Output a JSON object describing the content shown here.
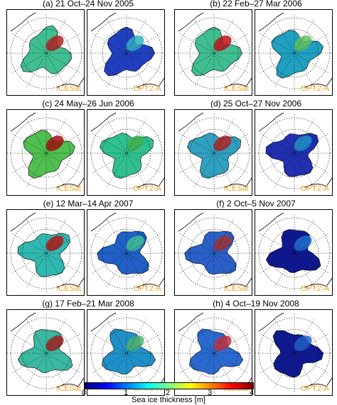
{
  "panels": [
    {
      "title": "(a) 21 Oct–24 Nov 2005",
      "left": "ICESat",
      "right": "OPT2-A"
    },
    {
      "title": "(b) 22 Feb–27 Mar 2006",
      "left": "ICESat",
      "right": "OPT2-A"
    },
    {
      "title": "(c) 24 May–26 Jun 2006",
      "left": "ICESat",
      "right": "OPT2-A"
    },
    {
      "title": "(d) 25 Oct–27 Nov 2006",
      "left": "ICESat",
      "right": "OPT2-A"
    },
    {
      "title": "(e) 12 Mar–14 Apr 2007",
      "left": "ICESat",
      "right": "OPT2-A"
    },
    {
      "title": "(f) 2 Oct–5 Nov 2007",
      "left": "ICESat",
      "right": "OPT2-A"
    },
    {
      "title": "(g) 17 Feb–21 Mar 2008",
      "left": "ICESat",
      "right": "OPT2-A"
    },
    {
      "title": "(h) 4 Oct–19 Nov 2008",
      "left": "ICESat",
      "right": "OPT2-A"
    }
  ],
  "colorbar": {
    "label": "Sea ice thickness [m]",
    "ticks": [
      "0",
      "1",
      "2",
      "3",
      "4"
    ],
    "colors": [
      "#00007f",
      "#0000ff",
      "#007fff",
      "#00ffff",
      "#7fff7f",
      "#ffff00",
      "#ff7f00",
      "#ff0000",
      "#7f0000"
    ]
  },
  "maps": {
    "icesat": [
      {
        "base": "#3fbf8f",
        "accent": "#b22222"
      },
      {
        "base": "#3fbf8f",
        "accent": "#c0101a"
      },
      {
        "base": "#4fc04f",
        "accent": "#a01010"
      },
      {
        "base": "#30a0c0",
        "accent": "#b22222"
      },
      {
        "base": "#30b8b0",
        "accent": "#b01818"
      },
      {
        "base": "#2a60c8",
        "accent": "#a03030"
      },
      {
        "base": "#3ab8a0",
        "accent": "#a02020"
      },
      {
        "base": "#2a6ad0",
        "accent": "#c03040"
      }
    ],
    "opt2a": [
      {
        "base": "#2040c0",
        "accent": "#30b0c0"
      },
      {
        "base": "#20a0c0",
        "accent": "#60c060"
      },
      {
        "base": "#30c090",
        "accent": "#40b050"
      },
      {
        "base": "#2030b0",
        "accent": "#2090c8"
      },
      {
        "base": "#2060c8",
        "accent": "#40c090"
      },
      {
        "base": "#101890",
        "accent": "#2070d0"
      },
      {
        "base": "#2090c8",
        "accent": "#50b070"
      },
      {
        "base": "#101a90",
        "accent": "#2060c8"
      }
    ]
  }
}
